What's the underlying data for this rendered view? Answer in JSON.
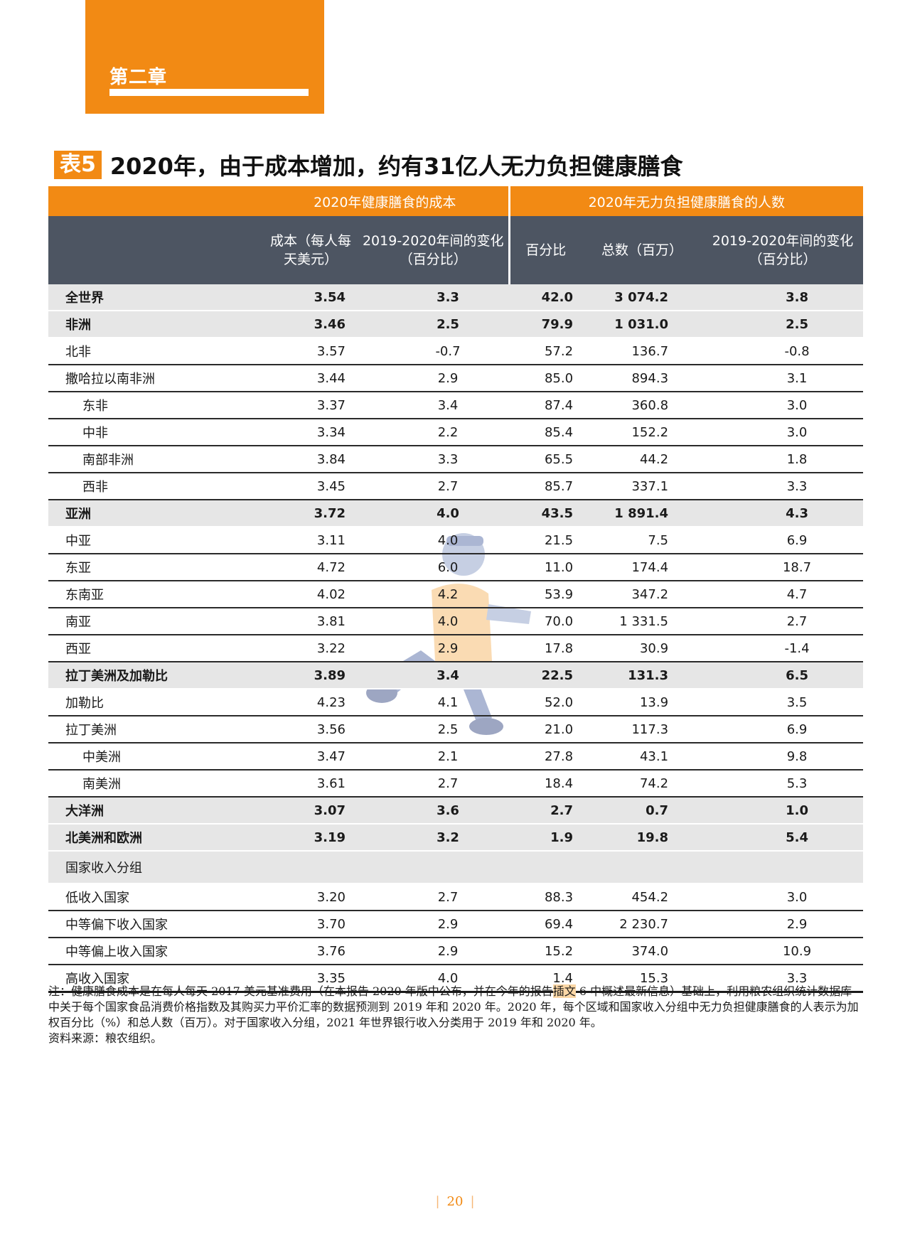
{
  "chapter": {
    "label": "第二章"
  },
  "table": {
    "tag": "表5",
    "title": "2020年，由于成本增加，约有31亿人无力负担健康膳食",
    "group_headers": [
      "2020年健康膳食的成本",
      "2020年无力负担健康膳食的人数"
    ],
    "columns": [
      "成本（每人每天美元）",
      "2019-2020年间的变化（百分比）",
      "百分比",
      "总数（百万）",
      "2019-2020年间的变化（百分比）"
    ],
    "rows": [
      {
        "name": "全世界",
        "values": [
          "3.54",
          "3.3",
          "42.0",
          "3 074.2",
          "3.8"
        ]
      },
      {
        "name": "非洲",
        "values": [
          "3.46",
          "2.5",
          "79.9",
          "1 031.0",
          "2.5"
        ]
      },
      {
        "name": "北非",
        "values": [
          "3.57",
          "-0.7",
          "57.2",
          "136.7",
          "-0.8"
        ]
      },
      {
        "name": "撒哈拉以南非洲",
        "values": [
          "3.44",
          "2.9",
          "85.0",
          "894.3",
          "3.1"
        ]
      },
      {
        "name": "东非",
        "values": [
          "3.37",
          "3.4",
          "87.4",
          "360.8",
          "3.0"
        ]
      },
      {
        "name": "中非",
        "values": [
          "3.34",
          "2.2",
          "85.4",
          "152.2",
          "3.0"
        ]
      },
      {
        "name": "南部非洲",
        "values": [
          "3.84",
          "3.3",
          "65.5",
          "44.2",
          "1.8"
        ]
      },
      {
        "name": "西非",
        "values": [
          "3.45",
          "2.7",
          "85.7",
          "337.1",
          "3.3"
        ]
      },
      {
        "name": "亚洲",
        "values": [
          "3.72",
          "4.0",
          "43.5",
          "1 891.4",
          "4.3"
        ]
      },
      {
        "name": "中亚",
        "values": [
          "3.11",
          "4.0",
          "21.5",
          "7.5",
          "6.9"
        ]
      },
      {
        "name": "东亚",
        "values": [
          "4.72",
          "6.0",
          "11.0",
          "174.4",
          "18.7"
        ]
      },
      {
        "name": "东南亚",
        "values": [
          "4.02",
          "4.2",
          "53.9",
          "347.2",
          "4.7"
        ]
      },
      {
        "name": "南亚",
        "values": [
          "3.81",
          "4.0",
          "70.0",
          "1 331.5",
          "2.7"
        ]
      },
      {
        "name": "西亚",
        "values": [
          "3.22",
          "2.9",
          "17.8",
          "30.9",
          "-1.4"
        ]
      },
      {
        "name": "拉丁美洲及加勒比",
        "values": [
          "3.89",
          "3.4",
          "22.5",
          "131.3",
          "6.5"
        ]
      },
      {
        "name": "加勒比",
        "values": [
          "4.23",
          "4.1",
          "52.0",
          "13.9",
          "3.5"
        ]
      },
      {
        "name": "拉丁美洲",
        "values": [
          "3.56",
          "2.5",
          "21.0",
          "117.3",
          "6.9"
        ]
      },
      {
        "name": "中美洲",
        "values": [
          "3.47",
          "2.1",
          "27.8",
          "43.1",
          "9.8"
        ]
      },
      {
        "name": "南美洲",
        "values": [
          "3.61",
          "2.7",
          "18.4",
          "74.2",
          "5.3"
        ]
      },
      {
        "name": "大洋洲",
        "values": [
          "3.07",
          "3.6",
          "2.7",
          "0.7",
          "1.0"
        ]
      },
      {
        "name": "北美洲和欧洲",
        "values": [
          "3.19",
          "3.2",
          "1.9",
          "19.8",
          "5.4"
        ]
      },
      {
        "name": "国家收入分组",
        "values": [
          "",
          "",
          "",
          "",
          ""
        ]
      },
      {
        "name": "低收入国家",
        "values": [
          "3.20",
          "2.7",
          "88.3",
          "454.2",
          "3.0"
        ]
      },
      {
        "name": "中等偏下收入国家",
        "values": [
          "3.70",
          "2.9",
          "69.4",
          "2 230.7",
          "2.9"
        ]
      },
      {
        "name": "中等偏上收入国家",
        "values": [
          "3.76",
          "2.9",
          "15.2",
          "374.0",
          "10.9"
        ]
      },
      {
        "name": "高收入国家",
        "values": [
          "3.35",
          "4.0",
          "1.4",
          "15.3",
          "3.3"
        ]
      }
    ]
  },
  "notes": {
    "note_a": "注：健康膳食成本是在每人每天 2017 美元基准费用（在本报告 2020 年版中公布，并在今年的报告",
    "note_highlight": "插文",
    "note_b": " 6 中概述最新信息）基础上，利用粮农组织统计数据库中关于每个国家食品消费价格指数及其购买力平价汇率的数据预测到 2019 年和 2020 年。2020 年，每个区域和国家收入分组中无力负担健康膳食的人表示为加权百分比（%）和总人数（百万）。对于国家收入分组，2021 年世界银行收入分类用于 2019 年和 2020 年。",
    "source": "资料来源：粮农组织。"
  },
  "footer": {
    "page_number": "20"
  },
  "colors": {
    "accent": "#f28a14",
    "header_dark": "#4d5562",
    "row_shade": "#e6e6e6"
  }
}
